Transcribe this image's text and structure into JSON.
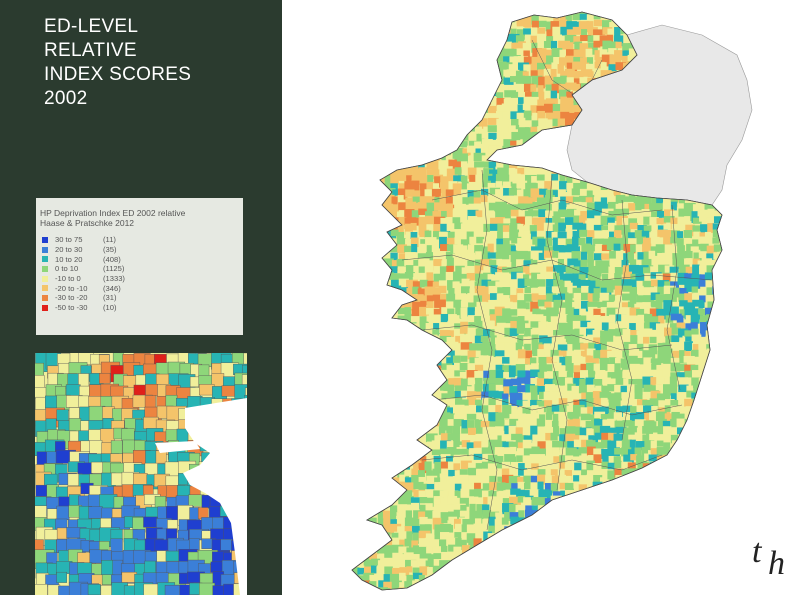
{
  "slide": {
    "title_lines": [
      "ED-LEVEL",
      "RELATIVE",
      "INDEX SCORES",
      "2002"
    ]
  },
  "legend": {
    "title_lines": [
      "HP Deprivation Index ED 2002 relative",
      "Haase & Pratschke 2012"
    ],
    "items": [
      {
        "range": "30 to  75",
        "count": "(11)",
        "color": "#1f3fd0"
      },
      {
        "range": "20 to  30",
        "count": "(35)",
        "color": "#3b7fd8"
      },
      {
        "range": "10 to  20",
        "count": "(408)",
        "color": "#27b4b4"
      },
      {
        "range": "0 to  10",
        "count": "(1125)",
        "color": "#8ed67a"
      },
      {
        "range": "-10 to   0",
        "count": "(1333)",
        "color": "#f1ef9b"
      },
      {
        "range": "-20 to -10",
        "count": "(346)",
        "color": "#f4c46a"
      },
      {
        "range": "-30 to -20",
        "count": "(31)",
        "color": "#ec8440"
      },
      {
        "range": "-50 to -30",
        "count": "(10)",
        "color": "#e0201a"
      }
    ]
  },
  "logo": {
    "text": "th"
  },
  "colors": {
    "sidebar_bg": "#2b3b2f",
    "northern_ireland": "#e8e8e8",
    "sea": "#ffffff"
  },
  "maps": {
    "main": "ireland-deprivation-map",
    "inset": "dublin-detail-map"
  }
}
